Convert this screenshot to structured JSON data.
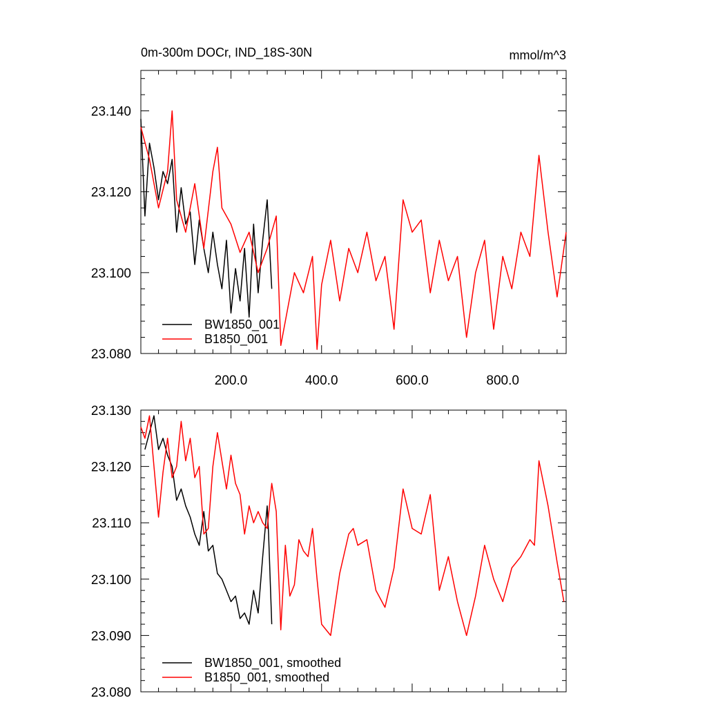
{
  "chart_data": [
    {
      "type": "line",
      "title": "0m-300m DOCr, IND_18S-30N",
      "units": "mmol/m^3",
      "xlim": [
        1,
        940
      ],
      "ylim": [
        23.08,
        23.15
      ],
      "xticks": [
        200,
        400,
        600,
        800
      ],
      "xtick_labels": [
        "200.0",
        "400.0",
        "600.0",
        "800.0"
      ],
      "yticks": [
        23.08,
        23.1,
        23.12,
        23.14
      ],
      "ytick_labels": [
        "23.080",
        "23.100",
        "23.120",
        "23.140"
      ],
      "legend_position": "bottom-left",
      "series": [
        {
          "name": "BW1850_001",
          "color": "#000000",
          "x": [
            1,
            10,
            20,
            30,
            40,
            50,
            60,
            70,
            80,
            90,
            100,
            110,
            120,
            130,
            140,
            150,
            160,
            170,
            180,
            190,
            200,
            210,
            220,
            230,
            240,
            250,
            260,
            270,
            280,
            290
          ],
          "values": [
            23.138,
            23.114,
            23.132,
            23.126,
            23.118,
            23.125,
            23.122,
            23.128,
            23.11,
            23.121,
            23.112,
            23.115,
            23.102,
            23.113,
            23.106,
            23.1,
            23.11,
            23.102,
            23.096,
            23.108,
            23.09,
            23.101,
            23.093,
            23.106,
            23.089,
            23.112,
            23.095,
            23.108,
            23.118,
            23.096
          ]
        },
        {
          "name": "B1850_001",
          "color": "#ff0000",
          "x": [
            1,
            20,
            40,
            60,
            70,
            80,
            100,
            120,
            140,
            160,
            170,
            180,
            200,
            220,
            240,
            260,
            280,
            300,
            310,
            340,
            360,
            380,
            390,
            400,
            420,
            440,
            460,
            480,
            500,
            520,
            540,
            560,
            580,
            600,
            620,
            640,
            660,
            680,
            700,
            720,
            740,
            760,
            780,
            800,
            820,
            840,
            860,
            880,
            900,
            920,
            940
          ],
          "values": [
            23.136,
            23.128,
            23.116,
            23.125,
            23.14,
            23.118,
            23.11,
            23.122,
            23.106,
            23.125,
            23.131,
            23.116,
            23.112,
            23.105,
            23.11,
            23.1,
            23.106,
            23.114,
            23.082,
            23.1,
            23.095,
            23.104,
            23.081,
            23.097,
            23.108,
            23.093,
            23.106,
            23.1,
            23.11,
            23.098,
            23.104,
            23.086,
            23.118,
            23.11,
            23.113,
            23.095,
            23.108,
            23.098,
            23.104,
            23.084,
            23.1,
            23.108,
            23.086,
            23.104,
            23.096,
            23.11,
            23.104,
            23.129,
            23.11,
            23.094,
            23.11
          ]
        }
      ]
    },
    {
      "type": "line",
      "xlim": [
        1,
        940
      ],
      "ylim": [
        23.08,
        23.13
      ],
      "yticks": [
        23.08,
        23.09,
        23.1,
        23.11,
        23.12,
        23.13
      ],
      "ytick_labels": [
        "23.080",
        "23.090",
        "23.100",
        "23.110",
        "23.120",
        "23.130"
      ],
      "legend_position": "bottom-left",
      "series": [
        {
          "name": "BW1850_001, smoothed",
          "color": "#000000",
          "x": [
            10,
            20,
            30,
            40,
            50,
            60,
            70,
            80,
            90,
            100,
            110,
            120,
            130,
            140,
            150,
            160,
            170,
            180,
            190,
            200,
            210,
            220,
            230,
            240,
            250,
            260,
            270,
            280,
            283,
            290
          ],
          "values": [
            23.123,
            23.126,
            23.129,
            23.123,
            23.125,
            23.122,
            23.12,
            23.114,
            23.116,
            23.113,
            23.111,
            23.108,
            23.106,
            23.112,
            23.105,
            23.106,
            23.101,
            23.1,
            23.098,
            23.096,
            23.097,
            23.093,
            23.094,
            23.092,
            23.098,
            23.094,
            23.104,
            23.113,
            23.108,
            23.092
          ]
        },
        {
          "name": "B1850_001, smoothed",
          "color": "#ff0000",
          "x": [
            1,
            10,
            20,
            30,
            40,
            50,
            60,
            70,
            80,
            90,
            100,
            110,
            120,
            130,
            140,
            150,
            160,
            170,
            180,
            190,
            200,
            210,
            220,
            230,
            240,
            250,
            260,
            270,
            280,
            290,
            300,
            310,
            320,
            330,
            340,
            350,
            360,
            370,
            380,
            390,
            400,
            420,
            440,
            460,
            470,
            480,
            500,
            520,
            540,
            560,
            580,
            600,
            620,
            640,
            660,
            680,
            700,
            720,
            740,
            760,
            780,
            800,
            820,
            840,
            860,
            870,
            880,
            900,
            920,
            935
          ],
          "values": [
            23.127,
            23.125,
            23.129,
            23.12,
            23.111,
            23.119,
            23.125,
            23.118,
            23.12,
            23.128,
            23.121,
            23.125,
            23.118,
            23.12,
            23.108,
            23.109,
            23.12,
            23.126,
            23.121,
            23.116,
            23.122,
            23.117,
            23.115,
            23.108,
            23.113,
            23.11,
            23.112,
            23.11,
            23.109,
            23.117,
            23.112,
            23.091,
            23.106,
            23.097,
            23.099,
            23.107,
            23.105,
            23.104,
            23.109,
            23.1,
            23.092,
            23.09,
            23.101,
            23.108,
            23.109,
            23.106,
            23.107,
            23.098,
            23.095,
            23.102,
            23.116,
            23.109,
            23.108,
            23.115,
            23.098,
            23.104,
            23.096,
            23.09,
            23.097,
            23.106,
            23.1,
            23.096,
            23.102,
            23.104,
            23.107,
            23.106,
            23.121,
            23.113,
            23.103,
            23.096
          ]
        }
      ]
    }
  ]
}
